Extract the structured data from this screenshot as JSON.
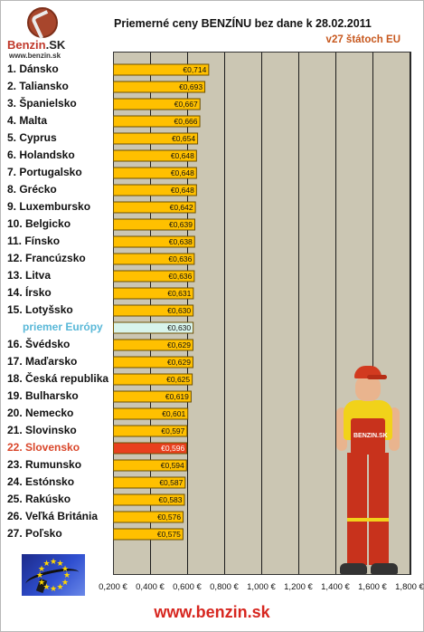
{
  "brand": {
    "logo_name": "Benzin",
    "logo_suffix": ".SK",
    "logo_url": "www.benzin.sk",
    "footer_url": "www.benzin.sk",
    "mascot_badge": "BENZIN.SK"
  },
  "chart_data": {
    "type": "bar",
    "orientation": "horizontal",
    "title": "Priemerné ceny BENZÍNU bez dane k 28.02.2011",
    "subtitle": "v27 štátoch EU",
    "categories": [
      "1. Dánsko",
      "2. Taliansko",
      "3. Španielsko",
      "4. Malta",
      "5. Cyprus",
      "6. Holandsko",
      "7. Portugalsko",
      "8. Grécko",
      "9. Luxembursko",
      "10. Belgicko",
      "11. Fínsko",
      "12. Francúzsko",
      "13. Litva",
      "14. Írsko",
      "15. Lotyšsko",
      "priemer Európy",
      "16. Švédsko",
      "17. Maďarsko",
      "18. Česká republika",
      "19. Bulharsko",
      "20. Nemecko",
      "21. Slovinsko",
      "22. Slovensko",
      "23. Rumunsko",
      "24. Estónsko",
      "25. Rakúsko",
      "26. Veľká Británia",
      "27. Poľsko"
    ],
    "values": [
      0.714,
      0.693,
      0.667,
      0.666,
      0.654,
      0.648,
      0.648,
      0.648,
      0.642,
      0.639,
      0.638,
      0.636,
      0.636,
      0.631,
      0.63,
      0.63,
      0.629,
      0.629,
      0.625,
      0.619,
      0.601,
      0.597,
      0.596,
      0.594,
      0.587,
      0.583,
      0.576,
      0.575
    ],
    "value_labels": [
      "€0,714",
      "€0,693",
      "€0,667",
      "€0,666",
      "€0,654",
      "€0,648",
      "€0,648",
      "€0,648",
      "€0,642",
      "€0,639",
      "€0,638",
      "€0,636",
      "€0,636",
      "€0,631",
      "€0,630",
      "€0,630",
      "€0,629",
      "€0,629",
      "€0,625",
      "€0,619",
      "€0,601",
      "€0,597",
      "€0,596",
      "€0,594",
      "€0,587",
      "€0,583",
      "€0,576",
      "€0,575"
    ],
    "highlight": {
      "europe_average_index": 15,
      "slovakia_index": 22
    },
    "xlim": [
      0.2,
      1.8
    ],
    "xticks": [
      0.2,
      0.4,
      0.6,
      0.8,
      1.0,
      1.2,
      1.4,
      1.6,
      1.8
    ],
    "xtick_labels": [
      "0,200 €",
      "0,400 €",
      "0,600 €",
      "0,800 €",
      "1,000 €",
      "1,200 €",
      "1,400 €",
      "1,600 €",
      "1,800 €"
    ],
    "grid": true,
    "colors": {
      "bar": "#ffc000",
      "bar_border": "#6e5000",
      "average_bar": "#d8f4ec",
      "slovakia_bar": "#e8401e",
      "plot_background": "#cbc6b3",
      "gridline": "#1c1c1c",
      "europe_text": "#59b8d8",
      "slovakia_text": "#d9462a"
    }
  }
}
